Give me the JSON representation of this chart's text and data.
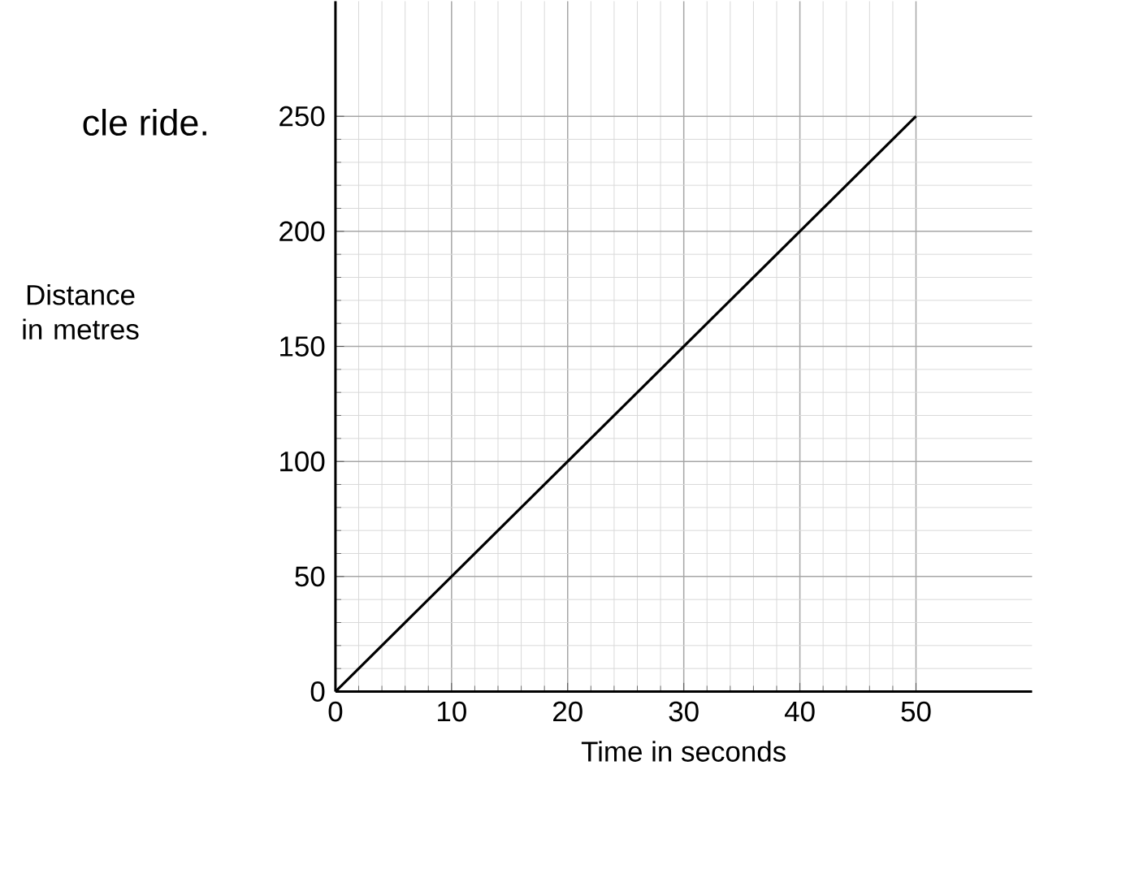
{
  "chart_data": {
    "type": "line",
    "xlabel": "Time in seconds",
    "ylabel": "Distance in metres",
    "annotations": [
      "cle ride."
    ],
    "x": [
      0,
      50
    ],
    "series": [
      {
        "color": "#000000",
        "values": [
          0,
          250
        ]
      }
    ],
    "xlim": [
      0,
      60
    ],
    "ylim": [
      0,
      300
    ],
    "xticks": [
      0,
      10,
      20,
      30,
      40,
      50
    ],
    "yticks": [
      0,
      50,
      100,
      150,
      200,
      250
    ],
    "grid": true,
    "marker": "none",
    "line_style": "solid"
  }
}
